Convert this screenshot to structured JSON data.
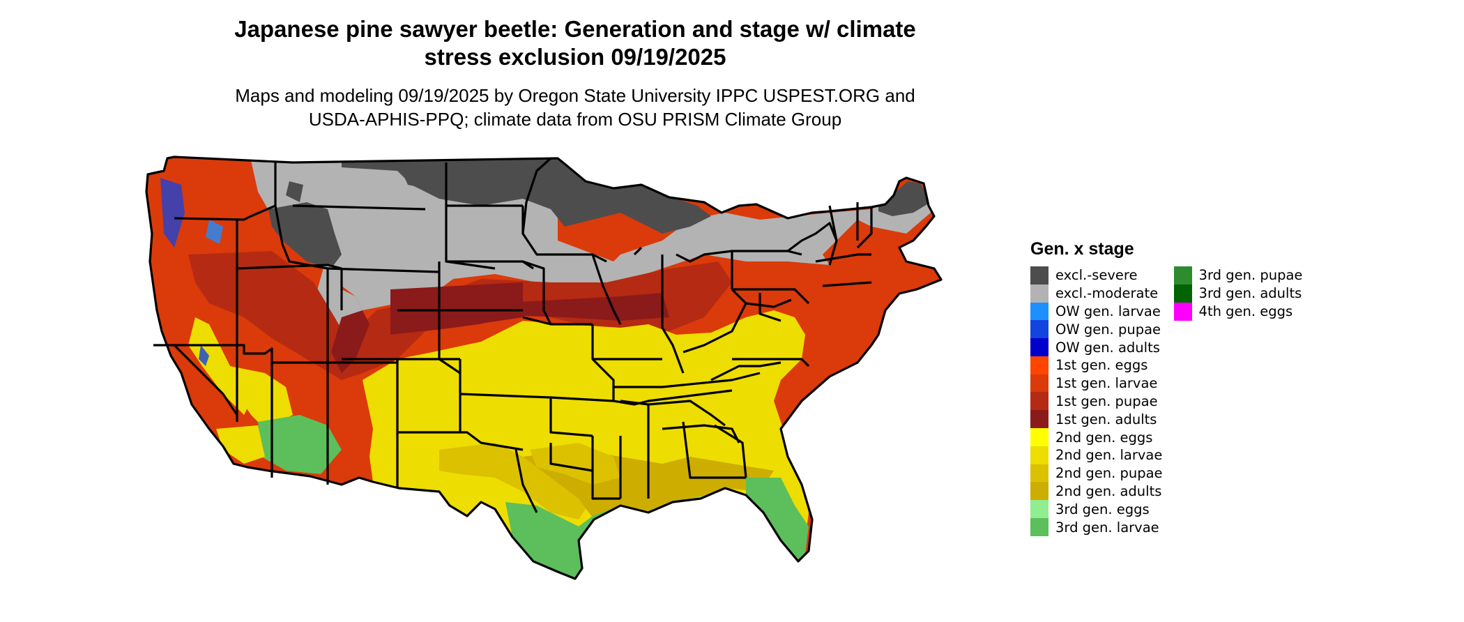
{
  "title_line1": "Japanese pine sawyer beetle: Generation and stage w/ climate",
  "title_line2": "stress exclusion 09/19/2025",
  "subtitle_line1": "Maps and modeling 09/19/2025 by Oregon State University IPPC USPEST.ORG and",
  "subtitle_line2": "USDA-APHIS-PPQ; climate data from OSU PRISM Climate Group",
  "legend": {
    "title": "Gen. x stage",
    "items": [
      {
        "label": "excl.-severe",
        "color": "#4d4d4d"
      },
      {
        "label": "excl.-moderate",
        "color": "#b3b3b3"
      },
      {
        "label": "OW gen. larvae",
        "color": "#1e8fff"
      },
      {
        "label": "OW gen. pupae",
        "color": "#1244e0"
      },
      {
        "label": "OW gen. adults",
        "color": "#0000cd"
      },
      {
        "label": "1st gen. eggs",
        "color": "#ff4500"
      },
      {
        "label": "1st gen. larvae",
        "color": "#db3a0b"
      },
      {
        "label": "1st gen. pupae",
        "color": "#b52a12"
      },
      {
        "label": "1st gen. adults",
        "color": "#8b1a1a"
      },
      {
        "label": "2nd gen. eggs",
        "color": "#ffff00"
      },
      {
        "label": "2nd gen. larvae",
        "color": "#eedd00"
      },
      {
        "label": "2nd gen. pupae",
        "color": "#dcc100"
      },
      {
        "label": "2nd gen. adults",
        "color": "#cdad00"
      },
      {
        "label": "3rd gen. eggs",
        "color": "#90ee90"
      },
      {
        "label": "3rd gen. larvae",
        "color": "#5cbf5c"
      },
      {
        "label": "3rd gen. pupae",
        "color": "#2e8b2e"
      },
      {
        "label": "3rd gen. adults",
        "color": "#006400"
      },
      {
        "label": "4th gen. eggs",
        "color": "#ff00ff"
      }
    ]
  }
}
